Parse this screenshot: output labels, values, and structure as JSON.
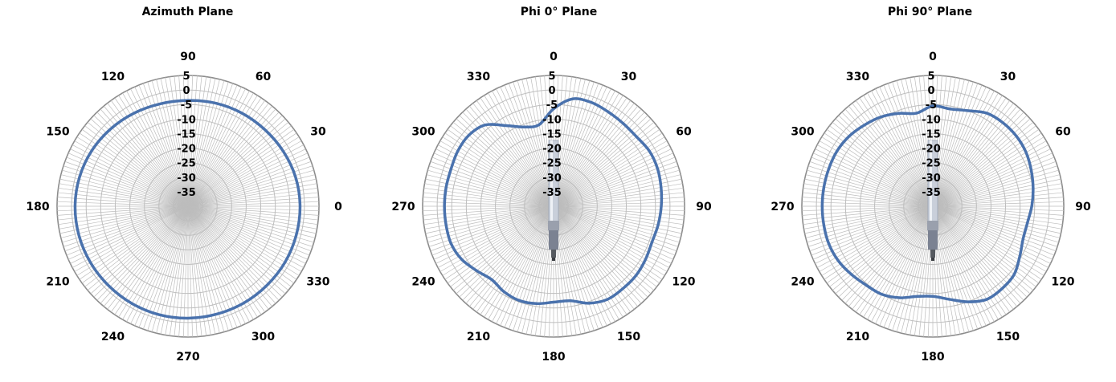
{
  "colors": {
    "series": "#4a72ad",
    "grid": "#bdbdbd",
    "outer_ring": "#8c8c8c",
    "antenna": "#c9cfda"
  },
  "chart_data": [
    {
      "type": "polar",
      "title": "Azimuth Plane",
      "rlim": [
        -40,
        5
      ],
      "r_ticks": [
        "5",
        "0",
        "-5",
        "-10",
        "-15",
        "-20",
        "-25",
        "-30",
        "-35"
      ],
      "angle_labels": [
        "0",
        "30",
        "60",
        "90",
        "120",
        "150",
        "180",
        "210",
        "240",
        "270",
        "300",
        "330"
      ],
      "angle_zero_position": "right",
      "angle_direction": "counterclockwise",
      "show_antenna": false,
      "series": [
        {
          "theta": [
            0,
            15,
            30,
            45,
            60,
            75,
            90,
            105,
            120,
            135,
            150,
            165,
            180,
            195,
            210,
            225,
            240,
            255,
            270,
            285,
            300,
            315,
            330,
            345
          ],
          "r": [
            -1.5,
            -1.7,
            -2.2,
            -2.7,
            -3.0,
            -3.3,
            -3.6,
            -3.5,
            -3.0,
            -2.4,
            -1.8,
            -1.4,
            -1.2,
            -1.2,
            -1.3,
            -1.4,
            -1.4,
            -1.4,
            -1.5,
            -1.6,
            -1.6,
            -1.6,
            -1.5,
            -1.5
          ]
        }
      ]
    },
    {
      "type": "polar",
      "title": "Phi 0° Plane",
      "rlim": [
        -40,
        5
      ],
      "r_ticks": [
        "5",
        "0",
        "-5",
        "-10",
        "-15",
        "-20",
        "-25",
        "-30",
        "-35"
      ],
      "angle_labels": [
        "0",
        "30",
        "60",
        "90",
        "120",
        "150",
        "180",
        "210",
        "240",
        "270",
        "300",
        "330"
      ],
      "angle_zero_position": "top",
      "angle_direction": "clockwise",
      "show_antenna": true,
      "series": [
        {
          "theta": [
            0,
            10,
            20,
            30,
            40,
            50,
            60,
            70,
            80,
            90,
            100,
            110,
            120,
            130,
            140,
            150,
            160,
            170,
            180,
            190,
            200,
            210,
            220,
            230,
            240,
            250,
            260,
            270,
            280,
            290,
            300,
            310,
            320,
            330,
            340,
            350
          ],
          "r": [
            -6.5,
            -2.5,
            -2.0,
            -2.5,
            -2.8,
            -2.8,
            -2.0,
            -2.0,
            -2.5,
            -3.0,
            -3.5,
            -4.0,
            -3.5,
            -3.0,
            -3.0,
            -3.0,
            -4.5,
            -7.0,
            -7.0,
            -6.0,
            -5.5,
            -6.0,
            -7.0,
            -5.5,
            -3.5,
            -2.5,
            -2.5,
            -2.5,
            -2.5,
            -2.5,
            -2.0,
            -2.0,
            -3.5,
            -8.0,
            -11.0,
            -11.5
          ]
        }
      ]
    },
    {
      "type": "polar",
      "title": "Phi 90° Plane",
      "rlim": [
        -40,
        5
      ],
      "r_ticks": [
        "5",
        "0",
        "-5",
        "-10",
        "-15",
        "-20",
        "-25",
        "-30",
        "-35"
      ],
      "angle_labels": [
        "0",
        "30",
        "60",
        "90",
        "120",
        "150",
        "180",
        "210",
        "240",
        "270",
        "300",
        "330"
      ],
      "angle_zero_position": "top",
      "angle_direction": "clockwise",
      "show_antenna": true,
      "series": [
        {
          "theta": [
            0,
            10,
            20,
            30,
            40,
            50,
            60,
            70,
            80,
            90,
            100,
            110,
            120,
            130,
            140,
            150,
            160,
            170,
            180,
            190,
            200,
            210,
            220,
            230,
            240,
            250,
            260,
            270,
            280,
            290,
            300,
            310,
            320,
            330,
            340,
            350
          ],
          "r": [
            -5.5,
            -6.0,
            -5.0,
            -3.0,
            -2.5,
            -2.5,
            -3.0,
            -4.0,
            -5.0,
            -6.0,
            -7.0,
            -7.0,
            -5.5,
            -3.5,
            -3.0,
            -3.0,
            -5.0,
            -7.5,
            -9.0,
            -8.5,
            -6.5,
            -5.0,
            -4.5,
            -3.5,
            -2.5,
            -2.0,
            -2.0,
            -2.0,
            -2.0,
            -2.0,
            -2.0,
            -2.5,
            -3.5,
            -4.5,
            -6.0,
            -7.5
          ]
        }
      ]
    }
  ]
}
